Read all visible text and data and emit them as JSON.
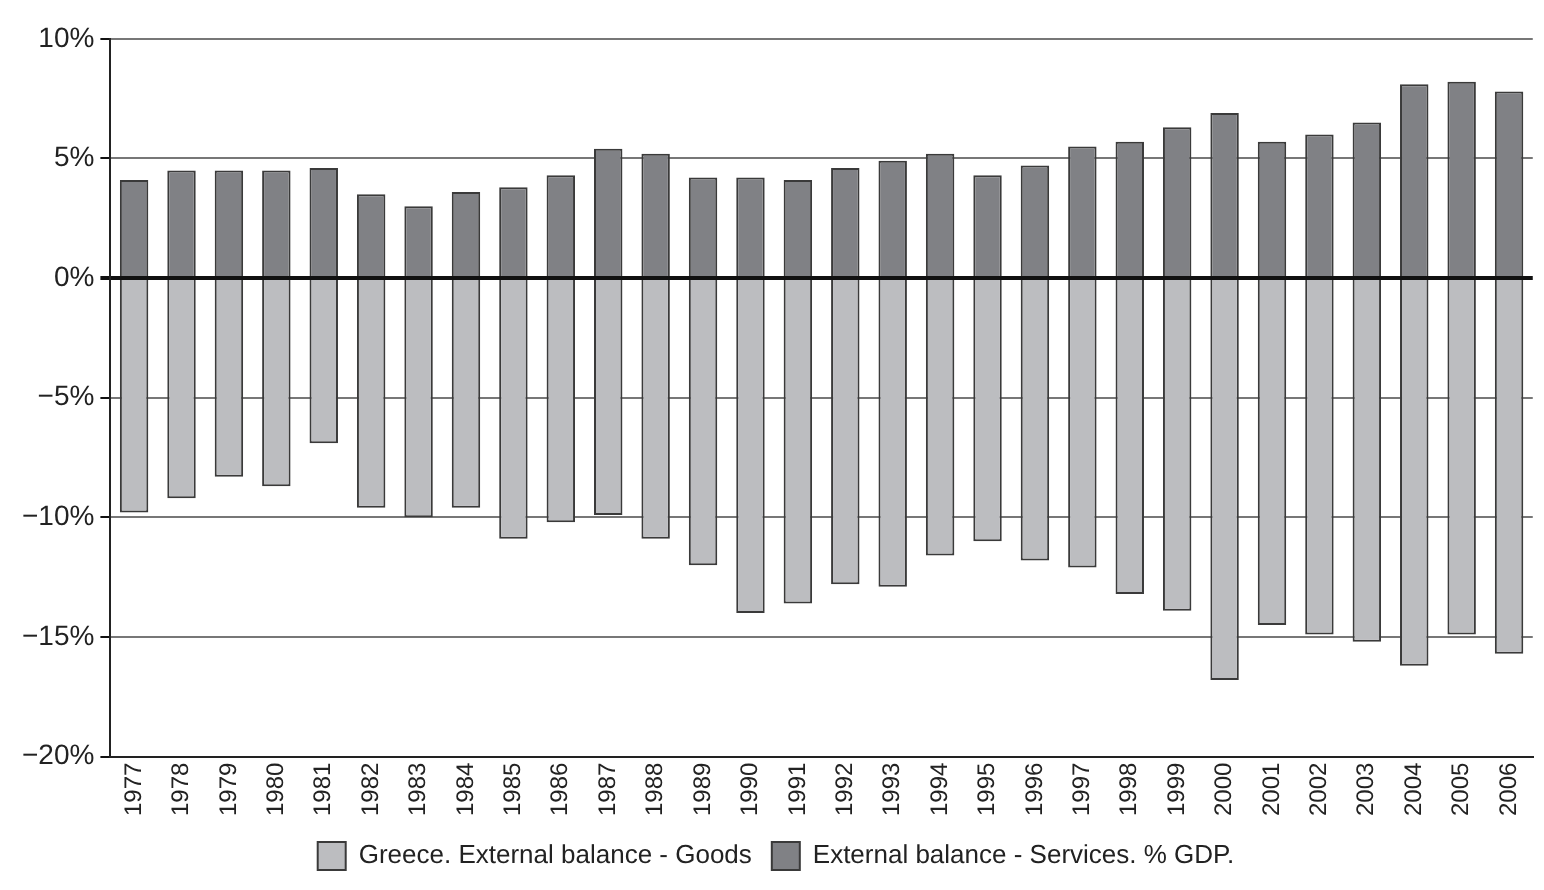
{
  "chart_data": {
    "type": "bar",
    "categories": [
      "1977",
      "1978",
      "1979",
      "1980",
      "1981",
      "1982",
      "1983",
      "1984",
      "1985",
      "1986",
      "1987",
      "1988",
      "1989",
      "1990",
      "1991",
      "1992",
      "1993",
      "1994",
      "1995",
      "1996",
      "1997",
      "1998",
      "1999",
      "2000",
      "2001",
      "2002",
      "2003",
      "2004",
      "2005",
      "2006"
    ],
    "series": [
      {
        "name": "Greece. External balance - Goods",
        "color": "#bcbdc0",
        "values": [
          -9.8,
          -9.2,
          -8.3,
          -8.7,
          -6.9,
          -9.6,
          -10.0,
          -9.6,
          -10.9,
          -10.2,
          -9.9,
          -10.9,
          -12.0,
          -14.0,
          -13.6,
          -12.8,
          -12.9,
          -11.6,
          -11.0,
          -11.8,
          -12.1,
          -13.2,
          -13.9,
          -16.8,
          -14.5,
          -14.9,
          -15.2,
          -16.2,
          -14.9,
          -15.7
        ]
      },
      {
        "name": "External balance - Services. % GDP.",
        "color": "#808185",
        "values": [
          4.1,
          4.5,
          4.5,
          4.5,
          4.6,
          3.5,
          3.0,
          3.6,
          3.8,
          4.3,
          5.4,
          5.2,
          4.2,
          4.2,
          4.1,
          4.6,
          4.9,
          5.2,
          4.3,
          4.7,
          5.5,
          5.7,
          6.3,
          6.9,
          5.7,
          6.0,
          6.5,
          8.1,
          8.2,
          7.8
        ]
      }
    ],
    "ylim": [
      -20,
      10
    ],
    "yticks": [
      {
        "value": -20,
        "label": "−20%"
      },
      {
        "value": -15,
        "label": "−15%"
      },
      {
        "value": -10,
        "label": "−10%"
      },
      {
        "value": -5,
        "label": "−5%"
      },
      {
        "value": 0,
        "label": "0%"
      },
      {
        "value": 5,
        "label": "5%"
      },
      {
        "value": 10,
        "label": "10%"
      }
    ],
    "grid": "y",
    "legend": "bottom",
    "stacked": true
  }
}
